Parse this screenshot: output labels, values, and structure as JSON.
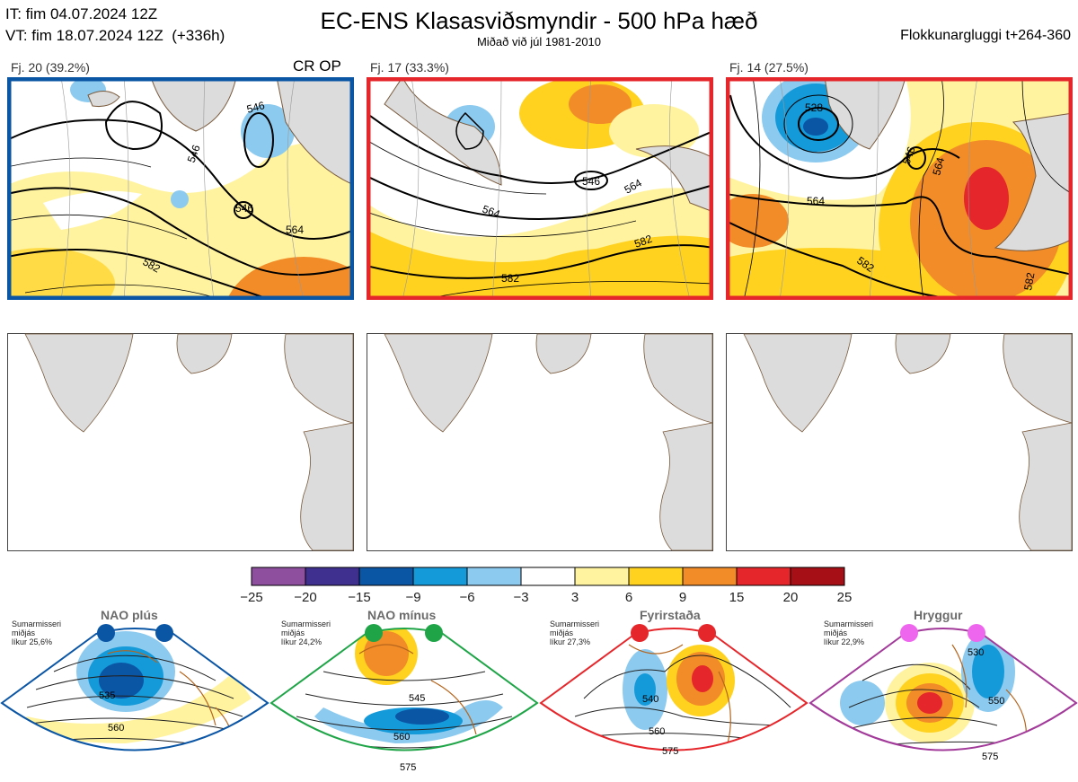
{
  "header": {
    "it_line": "IT: fim 04.07.2024 12Z",
    "vt_line": "VT: fim 18.07.2024 12Z  (+336h)",
    "title": "EC-ENS Klasasviðsmyndir - 500 hPa hæð",
    "subtitle": "Miðað við júl 1981-2010",
    "window_label": "Flokkunargluggi t+264-360"
  },
  "colors": {
    "ocean": "#ffffff",
    "land": "#dcdcdc",
    "coast": "#7a5a3c",
    "nao_plus": "#0b55a5",
    "nao_minus": "#1fa548",
    "blocking": "#e5262b",
    "ridge": "#a23a9a"
  },
  "top_panels": [
    {
      "label": "Fj. 20 (39.2%)",
      "tag": "CR OP",
      "border": "#0b55a5",
      "contours": [
        "546",
        "546",
        "546",
        "564",
        "582"
      ]
    },
    {
      "label": "Fj. 17 (33.3%)",
      "tag": "",
      "border": "#e5262b",
      "contours": [
        "564",
        "546",
        "564",
        "582",
        "582"
      ]
    },
    {
      "label": "Fj. 14 (27.5%)",
      "tag": "",
      "border": "#e5262b",
      "contours": [
        "528",
        "546",
        "564",
        "564",
        "582",
        "582"
      ]
    }
  ],
  "colorbar": {
    "ticks": [
      "−25",
      "−20",
      "−15",
      "−9",
      "−6",
      "−3",
      "3",
      "6",
      "9",
      "15",
      "20",
      "25"
    ],
    "colors": [
      "#8e4f9f",
      "#3f2f8f",
      "#0b55a5",
      "#159ad9",
      "#8ccaef",
      "#ffffff",
      "#fff3a0",
      "#ffd21f",
      "#f28c28",
      "#e5262b",
      "#a50f15"
    ]
  },
  "regimes": [
    {
      "name": "NAO plús",
      "season": "Sumarmisseri",
      "mean": "miðjás",
      "prob": "líkur 25,6%",
      "contours": [
        "535",
        "560"
      ]
    },
    {
      "name": "NAO mínus",
      "season": "Sumarmisseri",
      "mean": "miðjás",
      "prob": "líkur 24,2%",
      "contours": [
        "545",
        "560",
        "575"
      ]
    },
    {
      "name": "Fyrirstaða",
      "season": "Sumarmisseri",
      "mean": "miðjás",
      "prob": "líkur 27,3%",
      "contours": [
        "540",
        "560",
        "575"
      ]
    },
    {
      "name": "Hryggur",
      "season": "Sumarmisseri",
      "mean": "miðjás",
      "prob": "líkur 22,9%",
      "contours": [
        "530",
        "550",
        "575"
      ]
    }
  ],
  "chart_data": {
    "type": "heatmap",
    "title": "EC-ENS Klasasviðsmyndir - 500 hPa hæð",
    "subtitle": "Miðað við júl 1981-2010",
    "variable": "500 hPa height anomaly (colour scale)",
    "color_scale_edges": [
      -25,
      -20,
      -15,
      -9,
      -6,
      -3,
      3,
      6,
      9,
      15,
      20,
      25
    ],
    "clusters": [
      {
        "name": "Fj. 20",
        "members": 20,
        "percent": 39.2,
        "regime": "NAO plús",
        "contour_labels": [
          546,
          546,
          546,
          564,
          582
        ]
      },
      {
        "name": "Fj. 17",
        "members": 17,
        "percent": 33.3,
        "regime": "Fyrirstaða",
        "contour_labels": [
          564,
          546,
          564,
          582,
          582
        ]
      },
      {
        "name": "Fj. 14",
        "members": 14,
        "percent": 27.5,
        "regime": "Fyrirstaða",
        "contour_labels": [
          528,
          546,
          564,
          564,
          582,
          582
        ]
      }
    ],
    "regime_probabilities": [
      {
        "name": "NAO plús",
        "percent": 25.6
      },
      {
        "name": "NAO mínus",
        "percent": 24.2
      },
      {
        "name": "Fyrirstaða",
        "percent": 27.3
      },
      {
        "name": "Hryggur",
        "percent": 22.9
      }
    ]
  }
}
